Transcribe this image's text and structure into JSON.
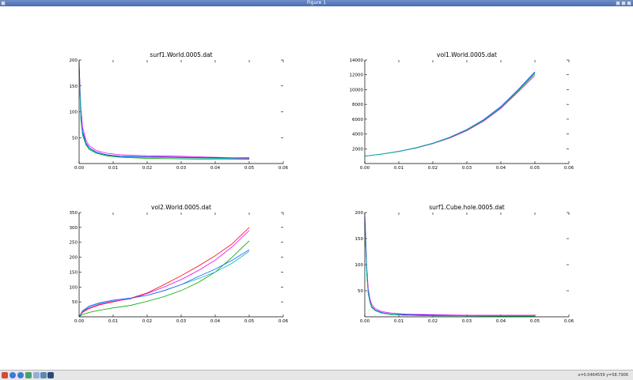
{
  "window": {
    "title": "Figure 1",
    "coords": {
      "x": "x=0.0464559",
      "y": "y=58.7906"
    }
  },
  "toolbar": {
    "icons": [
      "home-icon",
      "back-icon",
      "forward-icon",
      "pan-icon",
      "zoom-icon",
      "configure-icon",
      "save-icon"
    ]
  },
  "series_colors": [
    "#0000ff",
    "#ff0000",
    "#00aa00",
    "#00bbbb",
    "#ee00ee",
    "#2266ff"
  ],
  "chart_data": [
    {
      "type": "line",
      "title": "surf1.World.0005.dat",
      "xlim": [
        0,
        0.06
      ],
      "ylim": [
        0,
        200
      ],
      "xticks": [
        "0.00",
        "0.01",
        "0.02",
        "0.03",
        "0.04",
        "0.05",
        "0.06"
      ],
      "yticks": [
        "50",
        "100",
        "150",
        "200"
      ],
      "series": [
        {
          "color": "#0000ff",
          "x": [
            0.0,
            0.0005,
            0.001,
            0.002,
            0.003,
            0.005,
            0.008,
            0.012,
            0.02,
            0.03,
            0.04,
            0.05
          ],
          "y": [
            195,
            95,
            62,
            40,
            30,
            22,
            17,
            14,
            13,
            12,
            11,
            11
          ]
        },
        {
          "color": "#ee00ee",
          "x": [
            0.0,
            0.0005,
            0.001,
            0.002,
            0.003,
            0.005,
            0.008,
            0.012,
            0.02,
            0.03,
            0.04,
            0.05
          ],
          "y": [
            190,
            110,
            70,
            45,
            34,
            25,
            20,
            17,
            15,
            14,
            12,
            10
          ]
        },
        {
          "color": "#00aa00",
          "x": [
            0.0,
            0.0005,
            0.001,
            0.002,
            0.003,
            0.005,
            0.008,
            0.012,
            0.02,
            0.03,
            0.04,
            0.05
          ],
          "y": [
            185,
            85,
            55,
            36,
            27,
            20,
            15,
            12,
            10,
            9,
            8,
            8
          ]
        },
        {
          "color": "#00bbbb",
          "x": [
            0.0,
            0.0005,
            0.001,
            0.002,
            0.003,
            0.005,
            0.008,
            0.012,
            0.02,
            0.03,
            0.04,
            0.05
          ],
          "y": [
            188,
            90,
            58,
            38,
            29,
            21,
            16,
            13,
            12,
            11,
            10,
            9
          ]
        }
      ]
    },
    {
      "type": "line",
      "title": "vol1.World.0005.dat",
      "xlim": [
        0,
        0.06
      ],
      "ylim": [
        0,
        14000
      ],
      "xticks": [
        "0.00",
        "0.01",
        "0.02",
        "0.03",
        "0.04",
        "0.05",
        "0.06"
      ],
      "yticks": [
        "2000",
        "4000",
        "6000",
        "8000",
        "10000",
        "12000",
        "14000"
      ],
      "series": [
        {
          "color": "#0000ff",
          "x": [
            0.0,
            0.005,
            0.01,
            0.015,
            0.02,
            0.025,
            0.03,
            0.035,
            0.04,
            0.045,
            0.05
          ],
          "y": [
            1000,
            1280,
            1650,
            2130,
            2750,
            3550,
            4600,
            5950,
            7700,
            9950,
            12400
          ]
        },
        {
          "color": "#ee00ee",
          "x": [
            0.0,
            0.005,
            0.01,
            0.015,
            0.02,
            0.025,
            0.03,
            0.035,
            0.04,
            0.045,
            0.05
          ],
          "y": [
            1000,
            1270,
            1620,
            2080,
            2680,
            3450,
            4450,
            5750,
            7450,
            9650,
            11900
          ]
        },
        {
          "color": "#00aa00",
          "x": [
            0.0,
            0.005,
            0.01,
            0.015,
            0.02,
            0.025,
            0.03,
            0.035,
            0.04,
            0.045,
            0.05
          ],
          "y": [
            1000,
            1275,
            1640,
            2110,
            2720,
            3500,
            4530,
            5850,
            7580,
            9800,
            12150
          ]
        },
        {
          "color": "#00bbbb",
          "x": [
            0.0,
            0.005,
            0.01,
            0.015,
            0.02,
            0.025,
            0.03,
            0.035,
            0.04,
            0.045,
            0.05
          ],
          "y": [
            1000,
            1278,
            1645,
            2120,
            2735,
            3520,
            4560,
            5900,
            7640,
            9880,
            12300
          ]
        }
      ]
    },
    {
      "type": "line",
      "title": "vol2.World.0005.dat",
      "xlim": [
        0,
        0.06
      ],
      "ylim": [
        0,
        350
      ],
      "xticks": [
        "0.00",
        "0.01",
        "0.02",
        "0.03",
        "0.04",
        "0.05",
        "0.06"
      ],
      "yticks": [
        "50",
        "100",
        "150",
        "200",
        "250",
        "300",
        "350"
      ],
      "series": [
        {
          "color": "#ff0000",
          "x": [
            0.0,
            0.001,
            0.003,
            0.006,
            0.01,
            0.015,
            0.02,
            0.025,
            0.03,
            0.035,
            0.04,
            0.045,
            0.05
          ],
          "y": [
            0,
            15,
            28,
            40,
            50,
            62,
            80,
            108,
            138,
            170,
            205,
            245,
            300
          ]
        },
        {
          "color": "#ee00ee",
          "x": [
            0.0,
            0.001,
            0.003,
            0.006,
            0.01,
            0.015,
            0.02,
            0.025,
            0.03,
            0.035,
            0.04,
            0.045,
            0.05
          ],
          "y": [
            0,
            18,
            30,
            42,
            52,
            60,
            78,
            100,
            125,
            155,
            190,
            235,
            290
          ]
        },
        {
          "color": "#00aa00",
          "x": [
            0.0,
            0.001,
            0.003,
            0.006,
            0.01,
            0.015,
            0.02,
            0.025,
            0.03,
            0.035,
            0.04,
            0.045,
            0.05
          ],
          "y": [
            0,
            8,
            15,
            22,
            30,
            38,
            52,
            68,
            88,
            115,
            150,
            200,
            255
          ]
        },
        {
          "color": "#00bbbb",
          "x": [
            0.0,
            0.001,
            0.003,
            0.006,
            0.01,
            0.015,
            0.02,
            0.025,
            0.03,
            0.035,
            0.04,
            0.045,
            0.05
          ],
          "y": [
            0,
            18,
            34,
            45,
            55,
            62,
            72,
            88,
            108,
            128,
            150,
            180,
            220
          ]
        },
        {
          "color": "#2266ff",
          "x": [
            0.0,
            0.001,
            0.003,
            0.006,
            0.01,
            0.015,
            0.02,
            0.025,
            0.03,
            0.035,
            0.04,
            0.045,
            0.05
          ],
          "y": [
            0,
            20,
            36,
            47,
            56,
            63,
            72,
            88,
            108,
            135,
            160,
            190,
            225
          ]
        }
      ]
    },
    {
      "type": "line",
      "title": "surf1.Cube.hole.0005.dat",
      "xlim": [
        0,
        0.06
      ],
      "ylim": [
        0,
        200
      ],
      "xticks": [
        "0.00",
        "0.01",
        "0.02",
        "0.03",
        "0.04",
        "0.05",
        "0.06"
      ],
      "yticks": [
        "50",
        "100",
        "150",
        "200"
      ],
      "series": [
        {
          "color": "#ee00ee",
          "x": [
            0.0,
            0.0003,
            0.0006,
            0.001,
            0.0015,
            0.002,
            0.003,
            0.005,
            0.008,
            0.012,
            0.02,
            0.03,
            0.04,
            0.05
          ],
          "y": [
            195,
            150,
            95,
            55,
            35,
            24,
            16,
            10,
            7,
            5,
            4,
            3,
            3,
            3
          ]
        },
        {
          "color": "#0000ff",
          "x": [
            0.0,
            0.0003,
            0.0006,
            0.001,
            0.0015,
            0.002,
            0.003,
            0.005,
            0.008,
            0.012,
            0.02,
            0.03,
            0.04,
            0.05
          ],
          "y": [
            190,
            140,
            85,
            48,
            30,
            20,
            13,
            8,
            5,
            4,
            3,
            2,
            2,
            2
          ]
        },
        {
          "color": "#00aa00",
          "x": [
            0.0,
            0.0003,
            0.0006,
            0.001,
            0.0015,
            0.002,
            0.003,
            0.005,
            0.008,
            0.012,
            0.02,
            0.03,
            0.04,
            0.05
          ],
          "y": [
            180,
            130,
            80,
            45,
            28,
            18,
            12,
            7,
            4,
            3,
            2,
            2,
            1,
            1
          ]
        },
        {
          "color": "#00bbbb",
          "x": [
            0.0,
            0.0003,
            0.0006,
            0.001,
            0.0015,
            0.002,
            0.003,
            0.005,
            0.008,
            0.012,
            0.02,
            0.03,
            0.04,
            0.05
          ],
          "y": [
            185,
            135,
            82,
            46,
            29,
            19,
            12,
            7,
            5,
            3,
            2,
            2,
            2,
            2
          ]
        }
      ]
    }
  ]
}
